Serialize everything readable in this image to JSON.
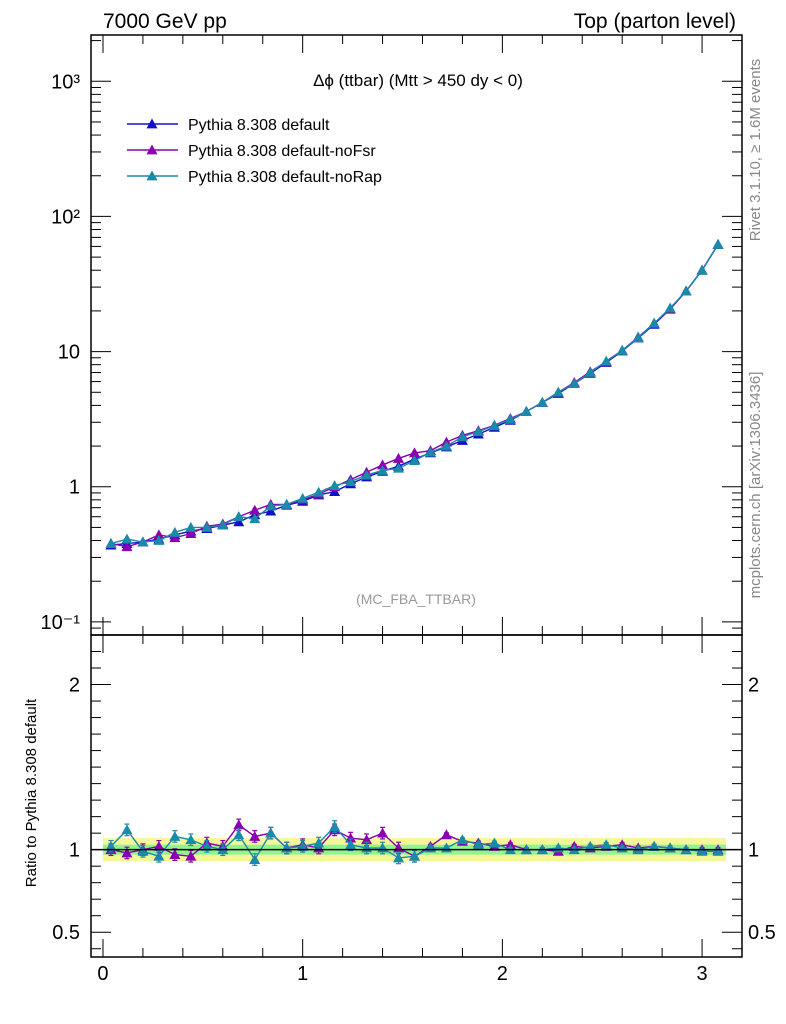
{
  "header": {
    "left": "7000 GeV pp",
    "right": "Top (parton level)"
  },
  "side_labels": {
    "rivet": "Rivet 3.1.10, ≥ 1.6M events",
    "mcplots": "mcplots.cern.ch [arXiv:1306.3436]"
  },
  "colors": {
    "default": "#1010c8",
    "noFsr": "#8a00b0",
    "noRap": "#1a8aaa",
    "band_inner": "#8ff58f",
    "band_outer": "#f5f59a"
  },
  "chart_data": [
    {
      "type": "line",
      "title": "Δϕ (ttbar) (Mtt > 450 dy < 0)",
      "analysis_label": "(MC_FBA_TTBAR)",
      "yscale": "log",
      "ylim": [
        0.08,
        2200
      ],
      "xlim": [
        -0.06,
        3.2
      ],
      "y_tick_labels": [
        "10⁻¹",
        "1",
        "10",
        "10²",
        "10³"
      ],
      "legend_position": "top-left",
      "x": [
        0.04,
        0.12,
        0.2,
        0.28,
        0.36,
        0.44,
        0.52,
        0.6,
        0.68,
        0.76,
        0.84,
        0.92,
        1.0,
        1.08,
        1.16,
        1.24,
        1.32,
        1.4,
        1.48,
        1.56,
        1.64,
        1.72,
        1.8,
        1.88,
        1.96,
        2.04,
        2.12,
        2.2,
        2.28,
        2.36,
        2.44,
        2.52,
        2.6,
        2.68,
        2.76,
        2.84,
        2.92,
        3.0,
        3.08
      ],
      "series": [
        {
          "name": "Pythia 8.308 default",
          "values": [
            0.37,
            0.38,
            0.39,
            0.41,
            0.44,
            0.47,
            0.49,
            0.52,
            0.55,
            0.62,
            0.66,
            0.73,
            0.78,
            0.87,
            0.92,
            1.05,
            1.18,
            1.3,
            1.42,
            1.6,
            1.78,
            1.97,
            2.2,
            2.45,
            2.75,
            3.1,
            3.6,
            4.2,
            4.9,
            5.8,
            6.9,
            8.3,
            10.1,
            12.6,
            15.9,
            20.6,
            28.0,
            40.0,
            62.0
          ]
        },
        {
          "name": "Pythia 8.308 default-noFsr",
          "values": [
            0.38,
            0.36,
            0.39,
            0.44,
            0.42,
            0.45,
            0.51,
            0.53,
            0.6,
            0.67,
            0.74,
            0.74,
            0.8,
            0.88,
            1.0,
            1.13,
            1.28,
            1.45,
            1.62,
            1.78,
            1.85,
            2.14,
            2.4,
            2.6,
            2.85,
            3.2,
            3.6,
            4.2,
            5.0,
            5.9,
            7.1,
            8.4,
            10.2,
            12.8,
            16.2,
            20.7,
            28.0,
            40.0,
            62.0
          ]
        },
        {
          "name": "Pythia 8.308 default-noRap",
          "values": [
            0.38,
            0.41,
            0.39,
            0.4,
            0.46,
            0.5,
            0.5,
            0.52,
            0.6,
            0.58,
            0.72,
            0.74,
            0.82,
            0.91,
            1.02,
            1.09,
            1.22,
            1.32,
            1.37,
            1.56,
            1.8,
            2.0,
            2.34,
            2.56,
            2.83,
            3.15,
            3.6,
            4.2,
            5.0,
            5.8,
            7.0,
            8.5,
            10.2,
            12.7,
            16.2,
            21.0,
            28.0,
            40.0,
            62.0
          ]
        }
      ]
    },
    {
      "type": "line",
      "ylabel": "Ratio to Pythia 8.308 default",
      "xlim": [
        -0.06,
        3.2
      ],
      "ylim": [
        0.35,
        2.3
      ],
      "x_tick_labels": [
        "0",
        "1",
        "2",
        "3"
      ],
      "y_tick_labels": [
        "0.5",
        "1",
        "2"
      ],
      "x": [
        0.04,
        0.12,
        0.2,
        0.28,
        0.36,
        0.44,
        0.52,
        0.6,
        0.68,
        0.76,
        0.84,
        0.92,
        1.0,
        1.08,
        1.16,
        1.24,
        1.32,
        1.4,
        1.48,
        1.56,
        1.64,
        1.72,
        1.8,
        1.88,
        1.96,
        2.04,
        2.12,
        2.2,
        2.28,
        2.36,
        2.44,
        2.52,
        2.6,
        2.68,
        2.76,
        2.84,
        2.92,
        3.0,
        3.08
      ],
      "series": [
        {
          "name": "Pythia 8.308 default-noFsr",
          "values": [
            1.0,
            0.98,
            1.0,
            1.02,
            0.97,
            0.96,
            1.04,
            1.02,
            1.15,
            1.08,
            1.1,
            1.01,
            1.03,
            1.01,
            1.12,
            1.07,
            1.06,
            1.1,
            1.01,
            0.96,
            1.02,
            1.09,
            1.05,
            1.04,
            1.02,
            1.03,
            1.0,
            1.0,
            0.99,
            1.02,
            1.01,
            1.02,
            1.03,
            1.01,
            1.02,
            1.01,
            1.0,
            1.0,
            1.0
          ]
        },
        {
          "name": "Pythia 8.308 default-noRap",
          "values": [
            1.02,
            1.12,
            0.99,
            0.96,
            1.08,
            1.06,
            1.02,
            1.0,
            1.09,
            0.94,
            1.1,
            1.01,
            1.02,
            1.04,
            1.14,
            1.03,
            1.01,
            1.01,
            0.95,
            0.96,
            1.01,
            1.01,
            1.06,
            1.03,
            1.04,
            1.0,
            1.0,
            1.0,
            1.01,
            1.0,
            1.02,
            1.03,
            1.01,
            1.0,
            1.02,
            1.01,
            1.0,
            0.99,
            0.99
          ]
        }
      ],
      "reference_line": 1
    }
  ]
}
